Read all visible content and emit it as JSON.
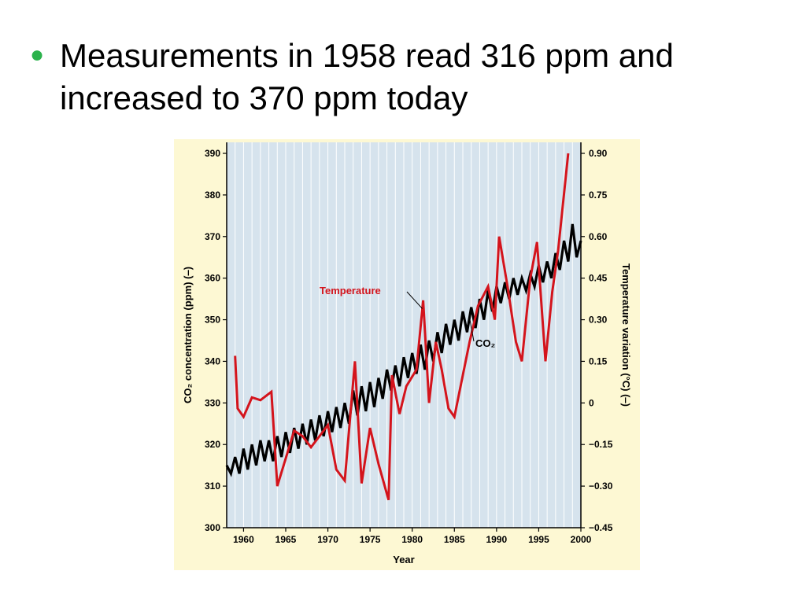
{
  "slide": {
    "bullet_text": "Measurements in 1958 read 316 ppm and increased to 370 ppm today"
  },
  "colors": {
    "bullet": "#2bb24c",
    "figure_bg": "#fdf8d3",
    "plot_bg": "#d6e3ed",
    "temperature_line": "#d4141c",
    "co2_line": "#000000"
  },
  "chart_data": {
    "type": "line",
    "xlabel": "Year",
    "ylabel_left": "CO₂ concentration (ppm) (‒)",
    "ylabel_right": "Temperature variation (°C) (‒)",
    "xlim": [
      1958,
      2000
    ],
    "ylim_left": [
      300,
      390
    ],
    "ylim_right": [
      -0.45,
      0.9
    ],
    "grid": true,
    "x_ticks": [
      "1960",
      "1965",
      "1970",
      "1975",
      "1980",
      "1985",
      "1990",
      "1995",
      "2000"
    ],
    "y_ticks_left": [
      "300",
      "310",
      "320",
      "330",
      "340",
      "350",
      "360",
      "370",
      "380",
      "390"
    ],
    "y_ticks_right": [
      "−0.45",
      "−0.30",
      "−0.15",
      "0",
      "0.15",
      "0.30",
      "0.45",
      "0.60",
      "0.75",
      "0.90"
    ],
    "annotations": [
      {
        "text": "Temperature",
        "color": "#d4141c",
        "points_to": {
          "x": 1981.2,
          "y_right": 0.34
        }
      },
      {
        "text": "CO₂",
        "color": "#000000",
        "points_to": {
          "x": 1986.8,
          "y_left": 350.5
        }
      }
    ],
    "series": [
      {
        "name": "CO₂",
        "axis": "left",
        "color": "#000000",
        "x": [
          1958.0,
          1958.5,
          1959.0,
          1959.5,
          1960.0,
          1960.5,
          1961.0,
          1961.5,
          1962.0,
          1962.5,
          1963.0,
          1963.5,
          1964.0,
          1964.5,
          1965.0,
          1965.5,
          1966.0,
          1966.5,
          1967.0,
          1967.5,
          1968.0,
          1968.5,
          1969.0,
          1969.5,
          1970.0,
          1970.5,
          1971.0,
          1971.5,
          1972.0,
          1972.5,
          1973.0,
          1973.5,
          1974.0,
          1974.5,
          1975.0,
          1975.5,
          1976.0,
          1976.5,
          1977.0,
          1977.5,
          1978.0,
          1978.5,
          1979.0,
          1979.5,
          1980.0,
          1980.5,
          1981.0,
          1981.5,
          1982.0,
          1982.5,
          1983.0,
          1983.5,
          1984.0,
          1984.5,
          1985.0,
          1985.5,
          1986.0,
          1986.5,
          1987.0,
          1987.5,
          1988.0,
          1988.5,
          1989.0,
          1989.5,
          1990.0,
          1990.5,
          1991.0,
          1991.5,
          1992.0,
          1992.5,
          1993.0,
          1993.5,
          1994.0,
          1994.5,
          1995.0,
          1995.5,
          1996.0,
          1996.5,
          1997.0,
          1997.5,
          1998.0,
          1998.5,
          1999.0,
          1999.5,
          2000.0
        ],
        "values": [
          315,
          313,
          317,
          313,
          319,
          314,
          320,
          315,
          321,
          316,
          321,
          316,
          322,
          317,
          323,
          318,
          324,
          319,
          325,
          320,
          326,
          321,
          327,
          322,
          328,
          323,
          329,
          324,
          330,
          325,
          333,
          327,
          334,
          328,
          335,
          329,
          336,
          331,
          338,
          333,
          339,
          334,
          341,
          336,
          342,
          337,
          344,
          338,
          345,
          340,
          347,
          342,
          349,
          344,
          350,
          345,
          352,
          347,
          353,
          348,
          355,
          350,
          357,
          352,
          358,
          354,
          359,
          355,
          360,
          356,
          360,
          357,
          361,
          358,
          363,
          359,
          364,
          360,
          366,
          362,
          369,
          364,
          373,
          365,
          369
        ]
      },
      {
        "name": "Temperature",
        "axis": "right",
        "color": "#d4141c",
        "x": [
          1959.0,
          1959.3,
          1960.0,
          1961.0,
          1962.0,
          1963.3,
          1964.0,
          1965.0,
          1966.0,
          1967.0,
          1968.0,
          1969.0,
          1970.0,
          1971.0,
          1972.0,
          1973.2,
          1974.0,
          1975.0,
          1976.0,
          1977.2,
          1977.6,
          1978.5,
          1979.3,
          1980.5,
          1981.3,
          1982.0,
          1982.8,
          1983.5,
          1984.3,
          1985.0,
          1986.0,
          1986.8,
          1987.8,
          1989.0,
          1989.8,
          1990.3,
          1991.3,
          1992.3,
          1993.0,
          1994.0,
          1994.8,
          1995.8,
          1996.6,
          1997.3,
          1998.5
        ],
        "values": [
          0.17,
          -0.02,
          -0.05,
          0.02,
          0.01,
          0.04,
          -0.3,
          -0.2,
          -0.1,
          -0.12,
          -0.16,
          -0.12,
          -0.08,
          -0.24,
          -0.28,
          0.15,
          -0.29,
          -0.09,
          -0.22,
          -0.35,
          0.1,
          -0.04,
          0.06,
          0.12,
          0.37,
          0.0,
          0.22,
          0.12,
          -0.02,
          -0.05,
          0.1,
          0.22,
          0.35,
          0.42,
          0.3,
          0.6,
          0.42,
          0.22,
          0.15,
          0.45,
          0.58,
          0.15,
          0.4,
          0.55,
          0.9
        ]
      }
    ]
  }
}
